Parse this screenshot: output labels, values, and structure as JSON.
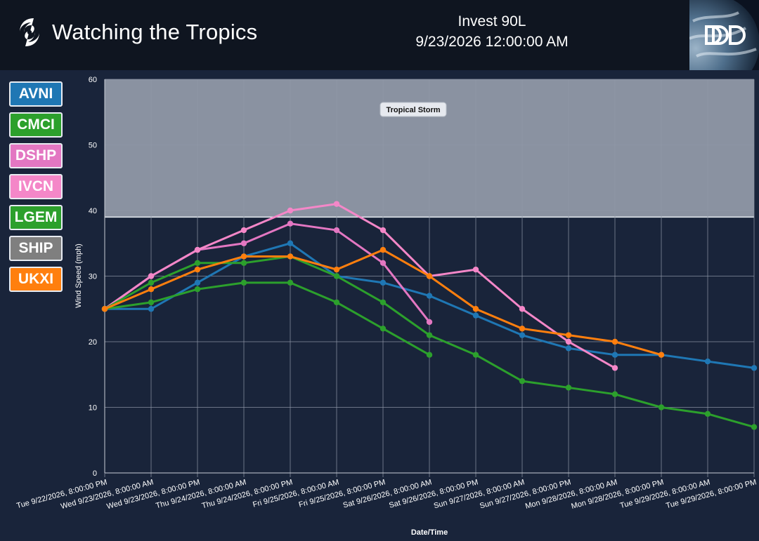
{
  "header": {
    "title": "Watching the Tropics",
    "storm_name": "Invest 90L",
    "timestamp": "9/23/2026 12:00:00 AM"
  },
  "legend": [
    {
      "label": "AVNI",
      "color": "#1f77b4"
    },
    {
      "label": "CMCI",
      "color": "#2ca02c"
    },
    {
      "label": "DSHP",
      "color": "#e377c2"
    },
    {
      "label": "IVCN",
      "color": "#f487c8"
    },
    {
      "label": "LGEM",
      "color": "#2ca02c"
    },
    {
      "label": "SHIP",
      "color": "#7f7f7f"
    },
    {
      "label": "UKXI",
      "color": "#ff7f0e"
    }
  ],
  "chart_data": {
    "type": "line",
    "xlabel": "Date/Time",
    "ylabel": "Wind Speed (mph)",
    "ylim": [
      0,
      60
    ],
    "yticks": [
      0,
      10,
      20,
      30,
      40,
      50,
      60
    ],
    "grid": true,
    "categories": [
      "Tue 9/22/2026, 8:00:00 PM",
      "Wed 9/23/2026, 8:00:00 AM",
      "Wed 9/23/2026, 8:00:00 PM",
      "Thu 9/24/2026, 8:00:00 AM",
      "Thu 9/24/2026, 8:00:00 PM",
      "Fri 9/25/2026, 8:00:00 AM",
      "Fri 9/25/2026, 8:00:00 PM",
      "Sat 9/26/2026, 8:00:00 AM",
      "Sat 9/26/2026, 8:00:00 PM",
      "Sun 9/27/2026, 8:00:00 AM",
      "Sun 9/27/2026, 8:00:00 PM",
      "Mon 9/28/2026, 8:00:00 AM",
      "Mon 9/28/2026, 8:00:00 PM",
      "Tue 9/29/2026, 8:00:00 AM",
      "Tue 9/29/2026, 8:00:00 PM"
    ],
    "band": {
      "label": "Tropical Storm",
      "from": 39,
      "to": 60
    },
    "series": [
      {
        "name": "AVNI",
        "color": "#1f77b4",
        "values": [
          25,
          25,
          29,
          33,
          35,
          30,
          29,
          27,
          24,
          21,
          19,
          18,
          18,
          17,
          16
        ]
      },
      {
        "name": "CMCI",
        "color": "#2ca02c",
        "values": [
          25,
          26,
          28,
          29,
          29,
          26,
          22,
          18,
          null,
          null,
          null,
          null,
          null,
          null,
          null
        ]
      },
      {
        "name": "DSHP",
        "color": "#e377c2",
        "values": [
          25,
          30,
          34,
          35,
          38,
          37,
          32,
          23,
          null,
          null,
          null,
          null,
          null,
          null,
          null
        ]
      },
      {
        "name": "IVCN",
        "color": "#f487c8",
        "values": [
          25,
          30,
          34,
          37,
          40,
          41,
          37,
          30,
          31,
          25,
          20,
          16,
          null,
          null,
          null
        ]
      },
      {
        "name": "LGEM",
        "color": "#2ca02c",
        "values": [
          25,
          29,
          32,
          32,
          33,
          30,
          26,
          21,
          18,
          14,
          13,
          12,
          10,
          9,
          7
        ]
      },
      {
        "name": "UKXI",
        "color": "#ff7f0e",
        "values": [
          25,
          28,
          31,
          33,
          33,
          31,
          34,
          30,
          25,
          22,
          21,
          20,
          18,
          null,
          null
        ]
      }
    ]
  }
}
